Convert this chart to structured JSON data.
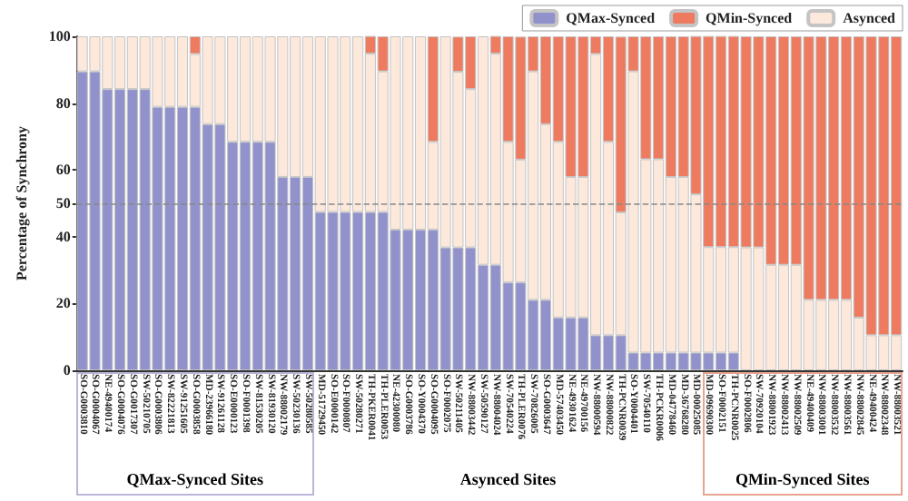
{
  "chart_data": {
    "type": "bar",
    "stacked": true,
    "ylabel": "Percentage of Synchrony",
    "categories": [
      "SO-G0003810",
      "SO-G0004067",
      "NE-49400174",
      "SO-G0004076",
      "SO-G0017307",
      "SW-50210705",
      "SO-G0003806",
      "SW-82221813",
      "SW-91251605",
      "SO-G0003858",
      "MD-23966180",
      "SW-91261128",
      "SO-E0000123",
      "SO-F0001398",
      "SW-81530205",
      "SW-81930120",
      "NW-88002179",
      "SW-50230136",
      "SW-50280585",
      "MD-51729450",
      "SO-E0000142",
      "SO-F0000807",
      "SW-50280271",
      "TH-PKER0041",
      "TH-PLER0053",
      "NE-42300080",
      "SO-G0003786",
      "SO-Y0004370",
      "SO-G0004095",
      "SO-F0002075",
      "SW-50211405",
      "NW-88003442",
      "SW-50590127",
      "NW-88004024",
      "SW-70540224",
      "TH-PLER0076",
      "SW-70826005",
      "SO-G0003647",
      "MD-57403450",
      "NE-49301624",
      "NE-49700156",
      "NW-88000594",
      "NW-88000822",
      "TH-PCNR0039",
      "SO-Y0004401",
      "SW-70540110",
      "TH-PCKR0006",
      "MD-04778460",
      "MD-36768280",
      "MD-00025085",
      "MD-09690300",
      "SO-F0002151",
      "TH-PCNR0025",
      "SO-F0002806",
      "SW-70920104",
      "NW-88001923",
      "NW-88002413",
      "NW-88002509",
      "NE-49400409",
      "NW-88003001",
      "NW-88003532",
      "NW-88003561",
      "NW-88002845",
      "NE-49400424",
      "NW-88002348",
      "NW-88003521"
    ],
    "series": [
      {
        "name": "QMax-Synced",
        "color": "#9192cc",
        "values": [
          89.5,
          89.5,
          84.2,
          84.2,
          84.2,
          84.2,
          78.9,
          78.9,
          78.9,
          78.9,
          73.7,
          73.7,
          68.4,
          68.4,
          68.4,
          68.4,
          57.9,
          57.9,
          57.9,
          47.4,
          47.4,
          47.4,
          47.4,
          47.4,
          47.4,
          42.1,
          42.1,
          42.1,
          42.1,
          36.8,
          36.8,
          36.8,
          31.6,
          31.6,
          26.3,
          26.3,
          21.1,
          21.1,
          15.8,
          15.8,
          15.8,
          10.5,
          10.5,
          10.5,
          5.3,
          5.3,
          5.3,
          5.3,
          5.3,
          5.3,
          5.3,
          5.3,
          5.3,
          0,
          0,
          0,
          0,
          0,
          0,
          0,
          0,
          0,
          0,
          0,
          0,
          0
        ]
      },
      {
        "name": "Asynced",
        "color": "#fde8dc",
        "values": [
          10.5,
          10.5,
          15.8,
          15.8,
          15.8,
          15.8,
          21.1,
          21.1,
          21.1,
          15.8,
          26.3,
          26.3,
          31.6,
          31.6,
          31.6,
          31.6,
          42.1,
          42.1,
          42.1,
          52.6,
          52.6,
          52.6,
          52.6,
          47.4,
          42.1,
          57.9,
          57.9,
          57.9,
          26.3,
          63.2,
          52.6,
          47.4,
          68.4,
          63.2,
          42.1,
          36.8,
          68.4,
          52.6,
          52.6,
          42.1,
          42.1,
          84.2,
          57.9,
          36.8,
          84.2,
          57.9,
          57.9,
          52.6,
          52.6,
          47.4,
          31.6,
          31.6,
          31.6,
          36.8,
          36.8,
          31.6,
          31.6,
          31.6,
          21.1,
          21.1,
          21.1,
          21.1,
          15.8,
          10.5,
          10.5,
          10.5
        ]
      },
      {
        "name": "QMin-Synced",
        "color": "#ee7b5f",
        "values": [
          0,
          0,
          0,
          0,
          0,
          0,
          0,
          0,
          0,
          5.3,
          0,
          0,
          0,
          0,
          0,
          0,
          0,
          0,
          0,
          0,
          0,
          0,
          0,
          5.3,
          10.5,
          0,
          0,
          0,
          31.6,
          0,
          10.5,
          15.8,
          0,
          5.3,
          31.6,
          36.8,
          10.5,
          26.3,
          31.6,
          42.1,
          42.1,
          5.3,
          31.6,
          52.6,
          10.5,
          36.8,
          36.8,
          42.1,
          42.1,
          47.4,
          63.2,
          63.2,
          63.2,
          63.2,
          63.2,
          68.4,
          68.4,
          68.4,
          78.9,
          78.9,
          78.9,
          78.9,
          84.2,
          89.5,
          89.5,
          89.5
        ]
      }
    ],
    "ylim": [
      0,
      100
    ],
    "yticks": [
      0,
      20,
      40,
      50,
      60,
      80,
      100
    ],
    "ref_lines": [
      {
        "axis": "y",
        "value": 50,
        "color": "#888888",
        "line_style": "dashed"
      }
    ],
    "legend": "top right",
    "annotations": [
      "QMax-Synced Sites",
      "Asynced Sites",
      "QMin-Synced Sites"
    ]
  }
}
